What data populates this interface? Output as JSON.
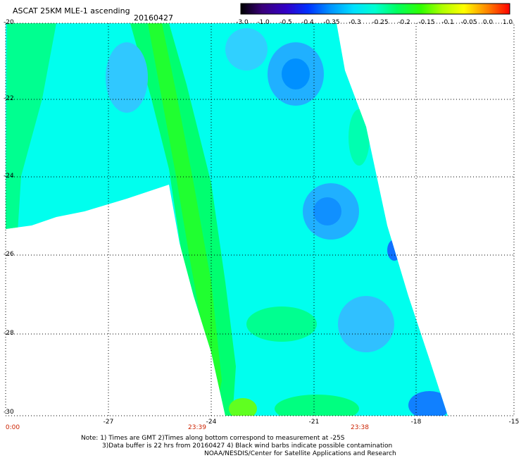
{
  "title": "ASCAT 25KM MLE-1 ascending",
  "date": "20160427",
  "colorbar": {
    "labels": [
      "-3.0",
      "-1.0",
      "-0.5",
      "-0.4",
      "-0.35",
      "-0.3",
      "-0.25",
      "-0.2",
      "-0.15",
      "-0.1",
      "-0.05",
      "0.0",
      "1.0"
    ],
    "colors": [
      "#000000",
      "#3a007a",
      "#3200c8",
      "#0030ff",
      "#0090ff",
      "#00e0ff",
      "#00ffd0",
      "#00ff60",
      "#30ff00",
      "#b0ff00",
      "#ffff00",
      "#ff8000",
      "#ff0000"
    ]
  },
  "lat_labels": [
    "-20",
    "-22",
    "-24",
    "-26",
    "-28",
    "-30"
  ],
  "lon_labels": [
    "-27",
    "-24",
    "-21",
    "-18",
    "-15"
  ],
  "time_labels": [
    "0:00",
    "23:39",
    "23:38"
  ],
  "notes": {
    "line1": "Note: 1) Times are GMT 2)Times along bottom correspond to measurement at -25S",
    "line2": "3)Data buffer is 22 hrs from 20160427 4) Black wind barbs indicate possible contamination",
    "line3": "NOAA/NESDIS/Center for Satellite Applications and Research"
  }
}
